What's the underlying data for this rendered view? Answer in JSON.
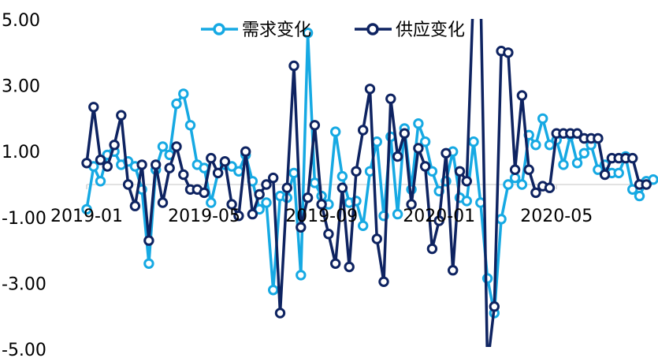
{
  "chart_data": {
    "type": "line",
    "title": "",
    "xlabel": "",
    "ylabel": "",
    "ylim": [
      -5,
      5
    ],
    "yticks": [
      "5.00",
      "3.00",
      "1.00",
      "-1.00",
      "-3.00",
      "-5.00"
    ],
    "ytick_values": [
      5,
      3,
      1,
      -1,
      -3,
      -5
    ],
    "xtick_labels": [
      "2019-01",
      "2019-05",
      "2019-09",
      "2020-01",
      "2020-05"
    ],
    "xtick_index": [
      0,
      17,
      34,
      51,
      68
    ],
    "grid": false,
    "legend_position": "top",
    "colors": {
      "demand": "#16A9E3",
      "supply": "#0E2361"
    },
    "series": [
      {
        "name": "需求变化",
        "values": [
          -0.75,
          0.55,
          0.1,
          0.9,
          1.0,
          0.6,
          0.7,
          0.55,
          -0.15,
          -2.4,
          0.45,
          1.15,
          0.9,
          2.45,
          2.75,
          1.8,
          0.6,
          0.5,
          -0.55,
          0.35,
          0.6,
          0.55,
          0.4,
          0.9,
          0.1,
          -0.75,
          -0.55,
          -3.2,
          -0.35,
          -0.4,
          0.35,
          -2.75,
          4.6,
          0.05,
          -0.35,
          -0.6,
          1.6,
          0.25,
          -0.55,
          -0.5,
          -1.25,
          0.4,
          1.3,
          -0.95,
          1.45,
          -0.9,
          1.7,
          -0.15,
          1.85,
          1.3,
          0.4,
          -0.2,
          0.1,
          1.0,
          -0.4,
          -0.5,
          1.3,
          -0.55,
          -2.85,
          -3.9,
          -1.05,
          0.0,
          0.2,
          0.0,
          1.5,
          1.2,
          2.0,
          1.2,
          1.35,
          0.6,
          1.5,
          0.65,
          0.95,
          1.2,
          0.45,
          0.6,
          0.35,
          0.35,
          0.85,
          -0.15,
          -0.35,
          0.1,
          0.15
        ]
      },
      {
        "name": "供应变化",
        "values": [
          0.65,
          2.35,
          0.75,
          0.55,
          1.2,
          2.1,
          0.0,
          -0.65,
          0.6,
          -1.7,
          0.6,
          -0.55,
          0.5,
          1.15,
          0.3,
          -0.15,
          -0.15,
          -0.25,
          0.8,
          0.35,
          0.7,
          -0.6,
          -0.95,
          1.0,
          -0.9,
          -0.3,
          0.0,
          0.2,
          -3.9,
          -0.1,
          3.6,
          -1.3,
          -0.4,
          1.8,
          -0.6,
          -1.5,
          -2.4,
          -0.1,
          -2.5,
          0.4,
          1.65,
          2.9,
          -1.65,
          -2.95,
          2.6,
          0.85,
          1.55,
          -0.6,
          1.1,
          0.55,
          -1.95,
          -1.1,
          0.95,
          -2.6,
          0.4,
          0.1,
          6.0,
          6.0,
          -5.5,
          -3.7,
          4.05,
          4.0,
          0.45,
          2.7,
          0.45,
          -0.25,
          -0.05,
          -0.1,
          1.55,
          1.55,
          1.55,
          1.55,
          1.4,
          1.4,
          1.4,
          0.3,
          0.8,
          0.8,
          0.8,
          0.8,
          0.0,
          0.0
        ]
      }
    ]
  }
}
